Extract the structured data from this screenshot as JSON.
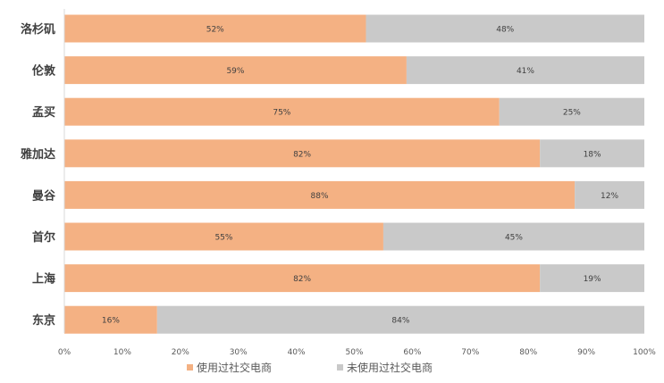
{
  "chart_data": {
    "type": "bar",
    "orientation": "horizontal",
    "stacked": "percent",
    "categories": [
      "洛杉矶",
      "伦敦",
      "孟买",
      "雅加达",
      "曼谷",
      "首尔",
      "上海",
      "东京"
    ],
    "series": [
      {
        "name": "使用过社交电商",
        "values": [
          52,
          59,
          75,
          82,
          88,
          55,
          82,
          16
        ],
        "labels": [
          "52%",
          "59%",
          "75%",
          "82%",
          "88%",
          "55%",
          "82%",
          "16%"
        ],
        "color": "#f4b183"
      },
      {
        "name": "未使用过社交电商",
        "values": [
          48,
          41,
          25,
          18,
          12,
          45,
          19,
          84
        ],
        "labels": [
          "48%",
          "41%",
          "25%",
          "18%",
          "12%",
          "45%",
          "19%",
          "84%"
        ],
        "color": "#c9c9c9"
      }
    ],
    "xlim": [
      0,
      100
    ],
    "xticks": [
      "0%",
      "10%",
      "20%",
      "30%",
      "40%",
      "50%",
      "60%",
      "70%",
      "80%",
      "90%",
      "100%"
    ],
    "grid": false,
    "legend_position": "bottom"
  }
}
